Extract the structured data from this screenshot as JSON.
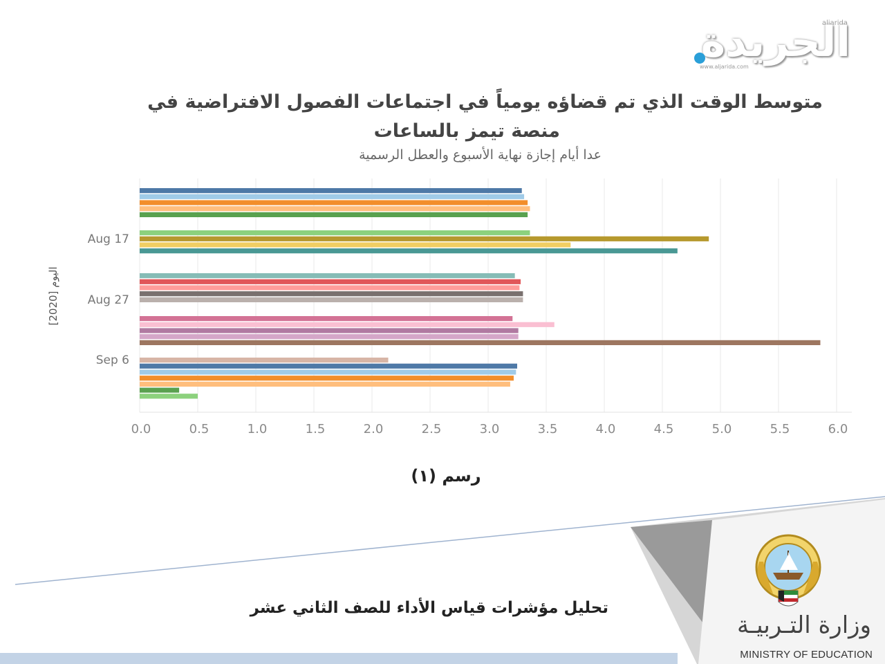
{
  "branding": {
    "newspaper_logo": "الجريدة",
    "newspaper_latin": "aljarida",
    "newspaper_url": "www.aljarida.com",
    "ministry_ar": "وزارة التـربيـة",
    "ministry_en": "MINISTRY OF EDUCATION"
  },
  "footer": {
    "report_title": "تحليل مؤشرات قياس الأداء للصف الثاني عشر"
  },
  "caption": "رسم (١)",
  "colors": {
    "accent": "#2a9fd8",
    "grid": "#e8e8e8",
    "footer_bar": "#c3d3e6"
  },
  "chart_data": {
    "type": "bar",
    "orientation": "horizontal",
    "title_line1": "متوسط الوقت الذي تم قضاؤه يومياً في اجتماعات الفصول الافتراضية في",
    "title_line2": "منصة تيمز بالساعات",
    "subtitle": "عدا أيام إجازة نهاية الأسبوع والعطل الرسمية",
    "ylabel": "اليوم [2020]",
    "xlabel": "",
    "xlim": [
      0.0,
      6.0
    ],
    "x_ticks": [
      "0.0",
      "0.5",
      "1.0",
      "1.5",
      "2.0",
      "2.5",
      "3.0",
      "3.5",
      "4.0",
      "4.5",
      "5.0",
      "5.5",
      "6.0"
    ],
    "category_labels": [
      "Aug 17",
      "Aug 27",
      "Sep 6"
    ],
    "grid": true,
    "bars": [
      {
        "value": 3.29,
        "color": "#4e79a7"
      },
      {
        "value": 3.31,
        "color": "#a0cbe8"
      },
      {
        "value": 3.34,
        "color": "#f28e2b"
      },
      {
        "value": 3.36,
        "color": "#ffbe7d"
      },
      {
        "value": 3.34,
        "color": "#59a14f"
      },
      {
        "value": 3.36,
        "color": "#8cd17d"
      },
      {
        "value": 4.9,
        "color": "#b6992d"
      },
      {
        "value": 3.71,
        "color": "#f1ce63"
      },
      {
        "value": 4.63,
        "color": "#499894"
      },
      {
        "value": 3.23,
        "color": "#86bcb6"
      },
      {
        "value": 3.28,
        "color": "#e15759"
      },
      {
        "value": 3.27,
        "color": "#ff9d9a"
      },
      {
        "value": 3.3,
        "color": "#79706e"
      },
      {
        "value": 3.3,
        "color": "#bab0ac"
      },
      {
        "value": 3.21,
        "color": "#d37295"
      },
      {
        "value": 3.57,
        "color": "#fabfd2"
      },
      {
        "value": 3.26,
        "color": "#b07aa1"
      },
      {
        "value": 3.26,
        "color": "#d4a6c8"
      },
      {
        "value": 5.86,
        "color": "#9d7660"
      },
      {
        "value": 2.14,
        "color": "#d7b5a6"
      },
      {
        "value": 3.25,
        "color": "#4e79a7"
      },
      {
        "value": 3.24,
        "color": "#a0cbe8"
      },
      {
        "value": 3.22,
        "color": "#f28e2b"
      },
      {
        "value": 3.19,
        "color": "#ffbe7d"
      },
      {
        "value": 0.34,
        "color": "#59a14f"
      },
      {
        "value": 0.5,
        "color": "#8cd17d"
      }
    ]
  }
}
